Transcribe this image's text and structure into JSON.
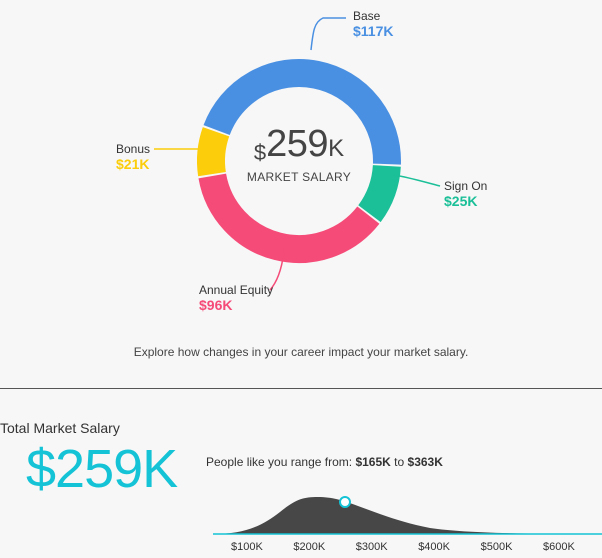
{
  "donut": {
    "center": {
      "currency": "$",
      "amount": "259",
      "suffix": "K",
      "caption": "MARKET SALARY"
    },
    "segments": [
      {
        "name": "Base",
        "value_label": "$117K",
        "value": 117,
        "color": "#4a90e2"
      },
      {
        "name": "Sign On",
        "value_label": "$25K",
        "value": 25,
        "color": "#1bbf98"
      },
      {
        "name": "Annual Equity",
        "value_label": "$96K",
        "value": 96,
        "color": "#f54b78"
      },
      {
        "name": "Bonus",
        "value_label": "$21K",
        "value": 21,
        "color": "#fbcd0a"
      }
    ]
  },
  "explore_text": "Explore how changes in your career impact your market salary.",
  "total": {
    "title": "Total Market Salary",
    "amount": "$259K",
    "range_prefix": "People like you range from:",
    "range_low": "$165K",
    "range_mid": "to",
    "range_high": "$363K"
  },
  "distribution": {
    "ticks": [
      "$100K",
      "$200K",
      "$300K",
      "$400K",
      "$500K",
      "$600K"
    ],
    "marker_value_k": 259,
    "fill_color": "#474747",
    "baseline_color": "#14c3d6"
  }
}
